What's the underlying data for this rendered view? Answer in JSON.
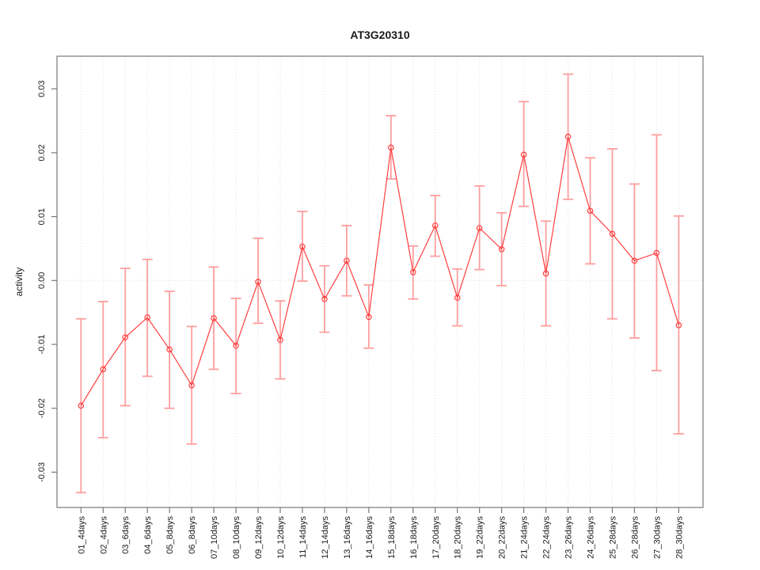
{
  "chart_data": {
    "type": "line",
    "title": "AT3G20310",
    "xlabel": "",
    "ylabel": "activity",
    "legend_position": "none",
    "grid": "dotted vertical gridline per category, dotted horizontal line at y=0",
    "marker": "open-circle",
    "error_bars": true,
    "categories": [
      "01_4days",
      "02_4days",
      "03_6days",
      "04_6days",
      "05_8days",
      "06_8days",
      "07_10days",
      "08_10days",
      "09_12days",
      "10_12days",
      "11_14days",
      "12_14days",
      "13_16days",
      "14_16days",
      "15_18days",
      "16_18days",
      "17_20days",
      "18_20days",
      "19_22days",
      "20_22days",
      "21_24days",
      "22_24days",
      "23_26days",
      "24_26days",
      "25_28days",
      "26_28days",
      "27_30days",
      "28_30days"
    ],
    "series": [
      {
        "name": "activity",
        "values": [
          -0.0196,
          -0.0139,
          -0.0089,
          -0.0058,
          -0.0108,
          -0.0164,
          -0.0059,
          -0.0102,
          -0.0002,
          -0.0093,
          0.0053,
          -0.0029,
          0.0031,
          -0.0057,
          0.0208,
          0.0013,
          0.0086,
          -0.0027,
          0.0082,
          0.0049,
          0.0197,
          0.0011,
          0.0225,
          0.0109,
          0.0073,
          0.0031,
          0.0043,
          -0.007
        ],
        "lower": [
          -0.0332,
          -0.0246,
          -0.0196,
          -0.015,
          -0.02,
          -0.0256,
          -0.0139,
          -0.0177,
          -0.0067,
          -0.0154,
          -0.0001,
          -0.0081,
          -0.0024,
          -0.0106,
          0.0159,
          -0.0029,
          0.0038,
          -0.0071,
          0.0017,
          -0.0008,
          0.0116,
          -0.0071,
          0.0127,
          0.0026,
          -0.006,
          -0.009,
          -0.0141,
          -0.024
        ],
        "upper": [
          -0.006,
          -0.0033,
          0.0019,
          0.0033,
          -0.0017,
          -0.0072,
          0.0021,
          -0.0028,
          0.0066,
          -0.0032,
          0.0108,
          0.0023,
          0.0086,
          -0.0007,
          0.0258,
          0.0054,
          0.0133,
          0.0018,
          0.0148,
          0.0106,
          0.028,
          0.0093,
          0.0323,
          0.0192,
          0.0206,
          0.0151,
          0.0228,
          0.0101
        ]
      }
    ],
    "y_ticks": [
      -0.03,
      -0.02,
      -0.01,
      0.0,
      0.01,
      0.02,
      0.03
    ],
    "y_tick_labels": [
      "-0.03",
      "-0.02",
      "-0.01",
      "0.00",
      "0.01",
      "0.02",
      "0.03"
    ],
    "ylim": [
      -0.0355,
      0.0351
    ],
    "colors": {
      "line": "#ff3f3f",
      "marker": "#ff3f3f",
      "error_bar": "#ff9e9e",
      "axis": "#777777",
      "grid": "#dedede",
      "zero_line": "#dedede",
      "text": "#1a1a1a",
      "background": "#ffffff"
    }
  }
}
